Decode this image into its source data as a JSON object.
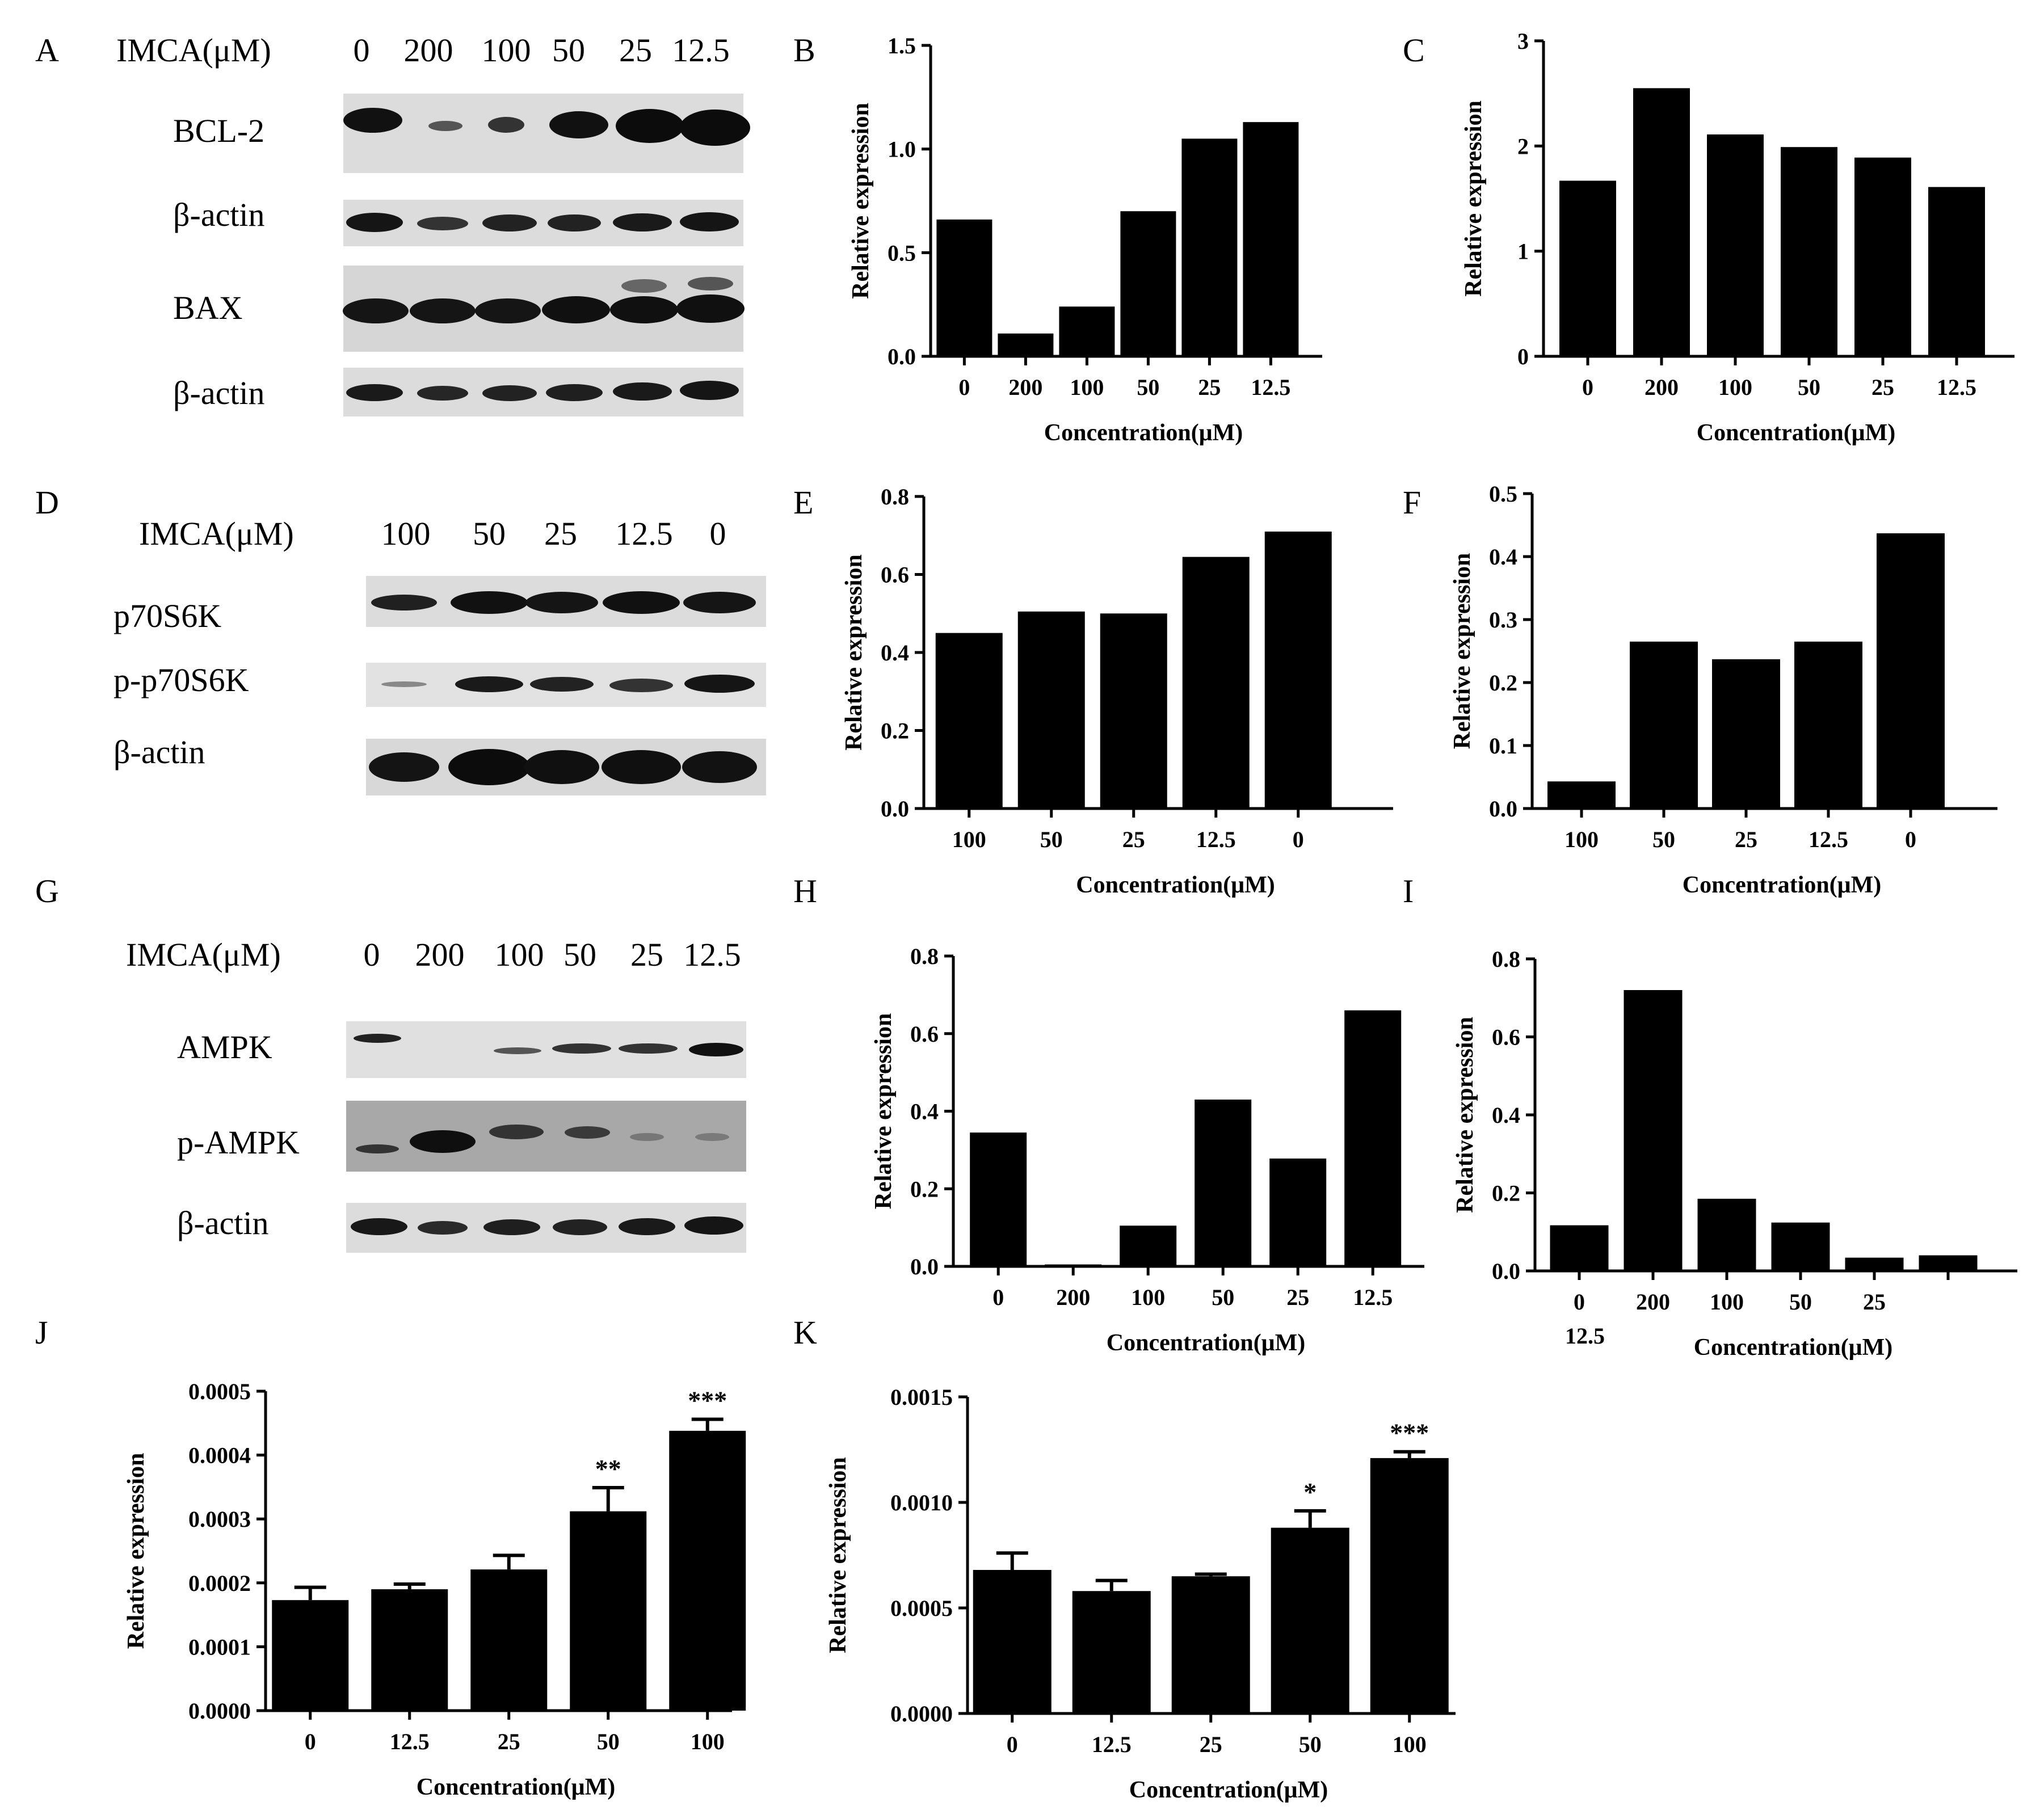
{
  "panels": {
    "A": "A",
    "B": "B",
    "C": "C",
    "D": "D",
    "E": "E",
    "F": "F",
    "G": "G",
    "H": "H",
    "I": "I",
    "J": "J",
    "K": "K"
  },
  "blots": {
    "A": {
      "header": "IMCA(μM)",
      "lanes": [
        "0",
        "200",
        "100",
        "50",
        "25",
        "12.5"
      ],
      "rows": [
        "BCL-2",
        "β-actin",
        "BAX",
        "β-actin"
      ]
    },
    "D": {
      "header": "IMCA(μM)",
      "lanes": [
        "100",
        "50",
        "25",
        "12.5",
        "0"
      ],
      "rows": [
        "p70S6K",
        "p-p70S6K",
        "β-actin"
      ]
    },
    "G": {
      "header": "IMCA(μM)",
      "lanes": [
        "0",
        "200",
        "100",
        "50",
        "25",
        "12.5"
      ],
      "rows": [
        "AMPK",
        "p-AMPK",
        "β-actin"
      ]
    }
  },
  "chart_data": [
    {
      "panel": "B",
      "type": "bar",
      "categories": [
        "0",
        "200",
        "100",
        "50",
        "25",
        "12.5"
      ],
      "values": [
        0.66,
        0.11,
        0.24,
        0.7,
        1.05,
        1.13
      ],
      "xlabel": "Concentration(μM)",
      "ylabel": "Relative expression",
      "ylim": [
        0,
        1.5
      ],
      "yticks": [
        "0.0",
        "0.5",
        "1.0",
        "1.5"
      ]
    },
    {
      "panel": "C",
      "type": "bar",
      "categories": [
        "0",
        "200",
        "100",
        "50",
        "25",
        "12.5"
      ],
      "values": [
        1.67,
        2.55,
        2.11,
        1.99,
        1.89,
        1.61
      ],
      "xlabel": "Concentration(μM)",
      "ylabel": "Relative expression",
      "ylim": [
        0,
        3
      ],
      "yticks": [
        "0",
        "1",
        "2",
        "3"
      ]
    },
    {
      "panel": "E",
      "type": "bar",
      "categories": [
        "100",
        "50",
        "25",
        "12.5",
        "0"
      ],
      "values": [
        0.45,
        0.505,
        0.5,
        0.645,
        0.71
      ],
      "xlabel": "Concentration(μM)",
      "ylabel": "Relative expression",
      "ylim": [
        0,
        0.8
      ],
      "yticks": [
        "0.0",
        "0.2",
        "0.4",
        "0.6",
        "0.8"
      ]
    },
    {
      "panel": "F",
      "type": "bar",
      "categories": [
        "100",
        "50",
        "25",
        "12.5",
        "0"
      ],
      "values": [
        0.043,
        0.265,
        0.237,
        0.265,
        0.437
      ],
      "xlabel": "Concentration(μM)",
      "ylabel": "Relative expression",
      "ylim": [
        0,
        0.5
      ],
      "yticks": [
        "0.0",
        "0.1",
        "0.2",
        "0.3",
        "0.4",
        "0.5"
      ]
    },
    {
      "panel": "H",
      "type": "bar",
      "categories": [
        "0",
        "200",
        "100",
        "50",
        "25",
        "12.5"
      ],
      "values": [
        0.345,
        0.005,
        0.105,
        0.43,
        0.278,
        0.66
      ],
      "xlabel": "Concentration(μM)",
      "ylabel": "Relative expression",
      "ylim": [
        0,
        0.8
      ],
      "yticks": [
        "0.0",
        "0.2",
        "0.4",
        "0.6",
        "0.8"
      ]
    },
    {
      "panel": "I",
      "type": "bar",
      "categories": [
        "0",
        "200",
        "100",
        "50",
        "25",
        ""
      ],
      "extra_label": "12.5",
      "values": [
        0.117,
        0.72,
        0.185,
        0.124,
        0.034,
        0.04
      ],
      "xlabel": "Concentration(μM)",
      "ylabel": "Relative expression",
      "ylim": [
        0,
        0.8
      ],
      "yticks": [
        "0.0",
        "0.2",
        "0.4",
        "0.6",
        "0.8"
      ]
    },
    {
      "panel": "J",
      "type": "bar",
      "categories": [
        "0",
        "12.5",
        "25",
        "50",
        "100"
      ],
      "values": [
        0.000173,
        0.00019,
        0.000221,
        0.000312,
        0.000438
      ],
      "errors": [
        2e-05,
        8e-06,
        2.2e-05,
        3.7e-05,
        1.8e-05
      ],
      "significance": [
        "",
        "",
        "",
        "**",
        "***"
      ],
      "xlabel": "Concentration(μM)",
      "ylabel": "Relative expression",
      "ylim": [
        0,
        0.0005
      ],
      "yticks": [
        "0.0000",
        "0.0001",
        "0.0002",
        "0.0003",
        "0.0004",
        "0.0005"
      ]
    },
    {
      "panel": "K",
      "type": "bar",
      "categories": [
        "0",
        "12.5",
        "25",
        "50",
        "100"
      ],
      "values": [
        0.00068,
        0.00058,
        0.00065,
        0.00088,
        0.00121
      ],
      "errors": [
        8e-05,
        5e-05,
        1e-05,
        8e-05,
        3e-05
      ],
      "significance": [
        "",
        "",
        "",
        "*",
        "***"
      ],
      "xlabel": "Concentration(μM)",
      "ylabel": "Relative expression",
      "ylim": [
        0,
        0.0015
      ],
      "yticks": [
        "0.0000",
        "0.0005",
        "0.0010",
        "0.0015"
      ]
    }
  ]
}
